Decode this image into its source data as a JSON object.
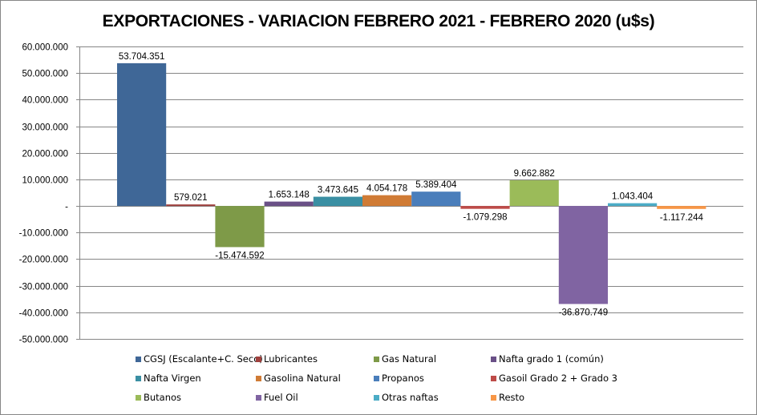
{
  "chart_data": {
    "type": "bar",
    "title": "EXPORTACIONES - VARIACION FEBRERO 2021 - FEBRERO 2020 (u$s)",
    "xlabel": "",
    "ylabel": "",
    "ylim": [
      -50000000,
      60000000
    ],
    "yticks": [
      60000000,
      50000000,
      40000000,
      30000000,
      20000000,
      10000000,
      0,
      -10000000,
      -20000000,
      -30000000,
      -40000000,
      -50000000
    ],
    "ytick_labels": [
      "60.000.000",
      "50.000.000",
      "40.000.000",
      "30.000.000",
      "20.000.000",
      "10.000.000",
      "-",
      "-10.000.000",
      "-20.000.000",
      "-30.000.000",
      "-40.000.000",
      "-50.000.000"
    ],
    "grid": true,
    "legend_position": "bottom",
    "series": [
      {
        "name": "CGSJ (Escalante+C. Seco)",
        "value": 53704351,
        "label": "53.704.351",
        "color": "#3F6797"
      },
      {
        "name": "Lubricantes",
        "value": 579021,
        "label": "579.021",
        "color": "#A0403D"
      },
      {
        "name": "Gas Natural",
        "value": -15474592,
        "label": "-15.474.592",
        "color": "#7E9A48"
      },
      {
        "name": "Nafta grado 1 (común)",
        "value": 1653148,
        "label": "1.653.148",
        "color": "#6A5087"
      },
      {
        "name": "Nafta Virgen",
        "value": 3473645,
        "label": "3.473.645",
        "color": "#3A8FA3"
      },
      {
        "name": "Gasolina Natural",
        "value": 4054178,
        "label": "4.054.178",
        "color": "#D07B35"
      },
      {
        "name": "Propanos",
        "value": 5389404,
        "label": "5.389.404",
        "color": "#4A7EBB"
      },
      {
        "name": "Gasoil Grado 2 + Grado 3",
        "value": -1079298,
        "label": "-1.079.298",
        "color": "#BE4B48"
      },
      {
        "name": "Butanos",
        "value": 9662882,
        "label": "9.662.882",
        "color": "#9BBB59"
      },
      {
        "name": "Fuel Oil",
        "value": -36870749,
        "label": "-36.870.749",
        "color": "#8064A2"
      },
      {
        "name": "Otras naftas",
        "value": 1043404,
        "label": "1.043.404",
        "color": "#4BACC6"
      },
      {
        "name": "Resto",
        "value": -1117244,
        "label": "-1.117.244",
        "color": "#F79646"
      }
    ],
    "gridline_color": "#868686"
  }
}
